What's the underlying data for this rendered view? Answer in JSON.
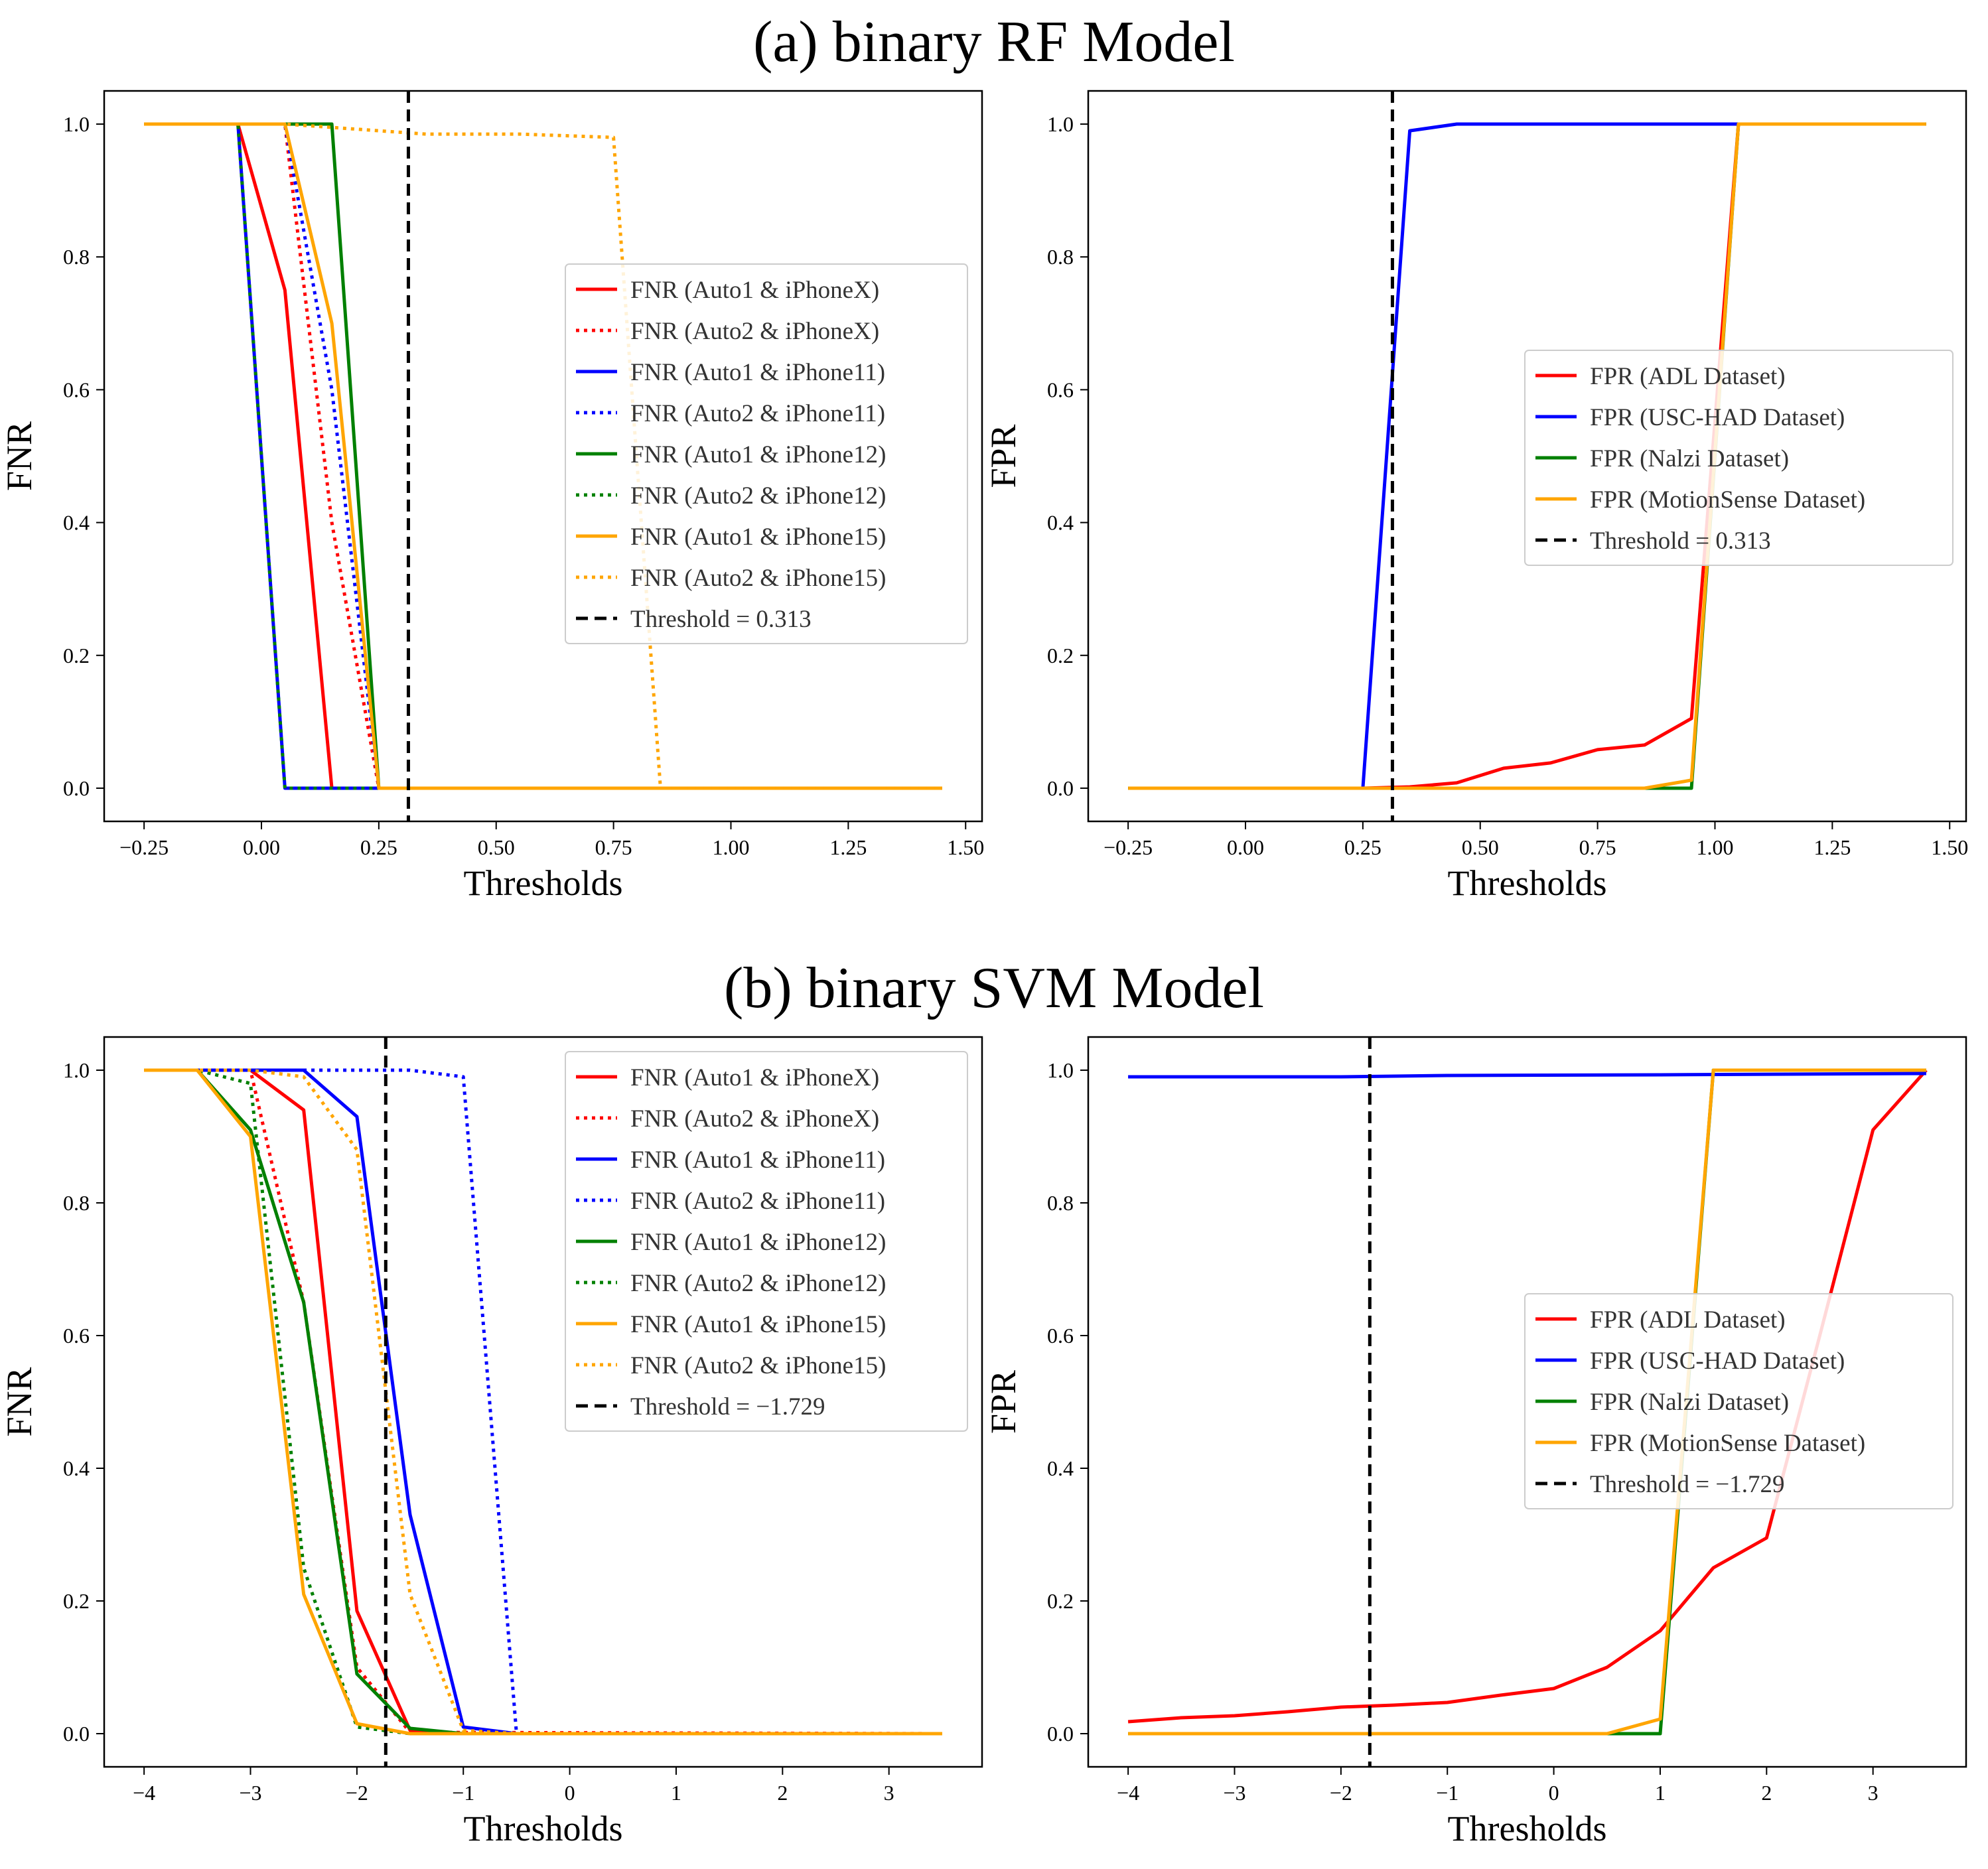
{
  "sections": [
    {
      "title": "(a) binary RF Model"
    },
    {
      "title": "(b) binary SVM Model"
    }
  ],
  "chart_data": [
    {
      "id": "rf-fnr",
      "type": "line",
      "xlabel": "Thresholds",
      "ylabel": "FNR",
      "xlim": [
        -0.335,
        1.535
      ],
      "ylim": [
        -0.05,
        1.05
      ],
      "xticks": [
        -0.25,
        0.0,
        0.25,
        0.5,
        0.75,
        1.0,
        1.25,
        1.5
      ],
      "xtick_labels": [
        "−0.25",
        "0.00",
        "0.25",
        "0.50",
        "0.75",
        "1.00",
        "1.25",
        "1.50"
      ],
      "yticks": [
        0.0,
        0.2,
        0.4,
        0.6,
        0.8,
        1.0
      ],
      "ytick_labels": [
        "0.0",
        "0.2",
        "0.4",
        "0.6",
        "0.8",
        "1.0"
      ],
      "legend_position": "center-right",
      "threshold": {
        "x": 0.313,
        "label": "Threshold = 0.313"
      },
      "series": [
        {
          "name": "FNR (Auto1 & iPhoneX)",
          "color": "#ff0000",
          "style": "solid",
          "points": [
            [
              -0.25,
              1
            ],
            [
              -0.05,
              1
            ],
            [
              0.05,
              0.75
            ],
            [
              0.15,
              0
            ],
            [
              1.45,
              0
            ]
          ]
        },
        {
          "name": "FNR (Auto2 & iPhoneX)",
          "color": "#ff0000",
          "style": "dotted",
          "points": [
            [
              -0.25,
              1
            ],
            [
              0.05,
              1
            ],
            [
              0.15,
              0.4
            ],
            [
              0.25,
              0
            ],
            [
              1.45,
              0
            ]
          ]
        },
        {
          "name": "FNR (Auto1 & iPhone11)",
          "color": "#0000ff",
          "style": "solid",
          "points": [
            [
              -0.25,
              1
            ],
            [
              -0.05,
              1
            ],
            [
              0.05,
              0
            ],
            [
              1.45,
              0
            ]
          ]
        },
        {
          "name": "FNR (Auto2 & iPhone11)",
          "color": "#0000ff",
          "style": "dotted",
          "points": [
            [
              -0.25,
              1
            ],
            [
              0.05,
              1
            ],
            [
              0.15,
              0.6
            ],
            [
              0.25,
              0
            ],
            [
              1.45,
              0
            ]
          ]
        },
        {
          "name": "FNR (Auto1 & iPhone12)",
          "color": "#008000",
          "style": "solid",
          "points": [
            [
              -0.25,
              1
            ],
            [
              0.05,
              1
            ],
            [
              0.15,
              1
            ],
            [
              0.25,
              0
            ],
            [
              1.45,
              0
            ]
          ]
        },
        {
          "name": "FNR (Auto2 & iPhone12)",
          "color": "#008000",
          "style": "dotted",
          "points": [
            [
              -0.25,
              1
            ],
            [
              -0.05,
              1
            ],
            [
              0.05,
              0
            ],
            [
              1.45,
              0
            ]
          ]
        },
        {
          "name": "FNR (Auto1 & iPhone15)",
          "color": "#ffa500",
          "style": "solid",
          "points": [
            [
              -0.25,
              1
            ],
            [
              0.05,
              1
            ],
            [
              0.15,
              0.7
            ],
            [
              0.25,
              0
            ],
            [
              1.45,
              0
            ]
          ]
        },
        {
          "name": "FNR (Auto2 & iPhone15)",
          "color": "#ffa500",
          "style": "dotted",
          "points": [
            [
              -0.25,
              1
            ],
            [
              0.05,
              1
            ],
            [
              0.35,
              0.985
            ],
            [
              0.55,
              0.985
            ],
            [
              0.75,
              0.98
            ],
            [
              0.85,
              0
            ],
            [
              1.45,
              0
            ]
          ]
        }
      ]
    },
    {
      "id": "rf-fpr",
      "type": "line",
      "xlabel": "Thresholds",
      "ylabel": "FPR",
      "xlim": [
        -0.335,
        1.535
      ],
      "ylim": [
        -0.05,
        1.05
      ],
      "xticks": [
        -0.25,
        0.0,
        0.25,
        0.5,
        0.75,
        1.0,
        1.25,
        1.5
      ],
      "xtick_labels": [
        "−0.25",
        "0.00",
        "0.25",
        "0.50",
        "0.75",
        "1.00",
        "1.25",
        "1.50"
      ],
      "yticks": [
        0.0,
        0.2,
        0.4,
        0.6,
        0.8,
        1.0
      ],
      "ytick_labels": [
        "0.0",
        "0.2",
        "0.4",
        "0.6",
        "0.8",
        "1.0"
      ],
      "legend_position": "center-right",
      "threshold": {
        "x": 0.313,
        "label": "Threshold = 0.313"
      },
      "series": [
        {
          "name": "FPR (ADL Dataset)",
          "color": "#ff0000",
          "style": "solid",
          "points": [
            [
              -0.25,
              0
            ],
            [
              0.25,
              0
            ],
            [
              0.35,
              0.002
            ],
            [
              0.45,
              0.008
            ],
            [
              0.55,
              0.03
            ],
            [
              0.65,
              0.038
            ],
            [
              0.75,
              0.058
            ],
            [
              0.85,
              0.065
            ],
            [
              0.95,
              0.105
            ],
            [
              1.05,
              1
            ],
            [
              1.45,
              1
            ]
          ]
        },
        {
          "name": "FPR (USC-HAD Dataset)",
          "color": "#0000ff",
          "style": "solid",
          "points": [
            [
              -0.25,
              0
            ],
            [
              0.25,
              0
            ],
            [
              0.35,
              0.99
            ],
            [
              0.45,
              1
            ],
            [
              1.05,
              1
            ],
            [
              1.45,
              1
            ]
          ]
        },
        {
          "name": "FPR (Nalzi Dataset)",
          "color": "#008000",
          "style": "solid",
          "points": [
            [
              -0.25,
              0
            ],
            [
              0.95,
              0
            ],
            [
              1.05,
              1
            ],
            [
              1.45,
              1
            ]
          ]
        },
        {
          "name": "FPR (MotionSense Dataset)",
          "color": "#ffa500",
          "style": "solid",
          "points": [
            [
              -0.25,
              0
            ],
            [
              0.85,
              0
            ],
            [
              0.95,
              0.012
            ],
            [
              1.05,
              1
            ],
            [
              1.45,
              1
            ]
          ]
        }
      ]
    },
    {
      "id": "svm-fnr",
      "type": "line",
      "xlabel": "Thresholds",
      "ylabel": "FNR",
      "xlim": [
        -4.375,
        3.875
      ],
      "ylim": [
        -0.05,
        1.05
      ],
      "xticks": [
        -4,
        -3,
        -2,
        -1,
        0,
        1,
        2,
        3
      ],
      "xtick_labels": [
        "−4",
        "−3",
        "−2",
        "−1",
        "0",
        "1",
        "2",
        "3"
      ],
      "yticks": [
        0.0,
        0.2,
        0.4,
        0.6,
        0.8,
        1.0
      ],
      "ytick_labels": [
        "0.0",
        "0.2",
        "0.4",
        "0.6",
        "0.8",
        "1.0"
      ],
      "legend_position": "upper-right",
      "threshold": {
        "x": -1.729,
        "label": "Threshold = −1.729"
      },
      "series": [
        {
          "name": "FNR (Auto1 & iPhoneX)",
          "color": "#ff0000",
          "style": "solid",
          "points": [
            [
              -4,
              1
            ],
            [
              -3,
              1
            ],
            [
              -2.5,
              0.94
            ],
            [
              -2,
              0.185
            ],
            [
              -1.5,
              0.005
            ],
            [
              -1,
              0
            ],
            [
              3.5,
              0
            ]
          ]
        },
        {
          "name": "FNR (Auto2 & iPhoneX)",
          "color": "#ff0000",
          "style": "dotted",
          "points": [
            [
              -4,
              1
            ],
            [
              -3,
              1
            ],
            [
              -2.5,
              0.65
            ],
            [
              -2,
              0.1
            ],
            [
              -1.5,
              0.002
            ],
            [
              3.5,
              0
            ]
          ]
        },
        {
          "name": "FNR (Auto1 & iPhone11)",
          "color": "#0000ff",
          "style": "solid",
          "points": [
            [
              -4,
              1
            ],
            [
              -3,
              1
            ],
            [
              -2.5,
              1
            ],
            [
              -2,
              0.93
            ],
            [
              -1.5,
              0.33
            ],
            [
              -1,
              0.01
            ],
            [
              -0.5,
              0
            ],
            [
              3.5,
              0
            ]
          ]
        },
        {
          "name": "FNR (Auto2 & iPhone11)",
          "color": "#0000ff",
          "style": "dotted",
          "points": [
            [
              -4,
              1
            ],
            [
              -1.5,
              1
            ],
            [
              -1,
              0.99
            ],
            [
              -0.5,
              0
            ],
            [
              3.5,
              0
            ]
          ]
        },
        {
          "name": "FNR (Auto1 & iPhone12)",
          "color": "#008000",
          "style": "solid",
          "points": [
            [
              -4,
              1
            ],
            [
              -3.5,
              1
            ],
            [
              -3,
              0.91
            ],
            [
              -2.5,
              0.65
            ],
            [
              -2,
              0.09
            ],
            [
              -1.5,
              0.008
            ],
            [
              -1,
              0
            ],
            [
              3.5,
              0
            ]
          ]
        },
        {
          "name": "FNR (Auto2 & iPhone12)",
          "color": "#008000",
          "style": "dotted",
          "points": [
            [
              -4,
              1
            ],
            [
              -3.5,
              1
            ],
            [
              -3,
              0.98
            ],
            [
              -2.5,
              0.25
            ],
            [
              -2,
              0.01
            ],
            [
              -1.5,
              0
            ],
            [
              3.5,
              0
            ]
          ]
        },
        {
          "name": "FNR (Auto1 & iPhone15)",
          "color": "#ffa500",
          "style": "solid",
          "points": [
            [
              -4,
              1
            ],
            [
              -3.5,
              1
            ],
            [
              -3,
              0.9
            ],
            [
              -2.5,
              0.21
            ],
            [
              -2,
              0.015
            ],
            [
              -1.5,
              0
            ],
            [
              3.5,
              0
            ]
          ]
        },
        {
          "name": "FNR (Auto2 & iPhone15)",
          "color": "#ffa500",
          "style": "dotted",
          "points": [
            [
              -4,
              1
            ],
            [
              -3,
              1
            ],
            [
              -2.5,
              0.99
            ],
            [
              -2,
              0.88
            ],
            [
              -1.5,
              0.21
            ],
            [
              -1,
              0.005
            ],
            [
              -0.5,
              0
            ],
            [
              3.5,
              0
            ]
          ]
        }
      ]
    },
    {
      "id": "svm-fpr",
      "type": "line",
      "xlabel": "Thresholds",
      "ylabel": "FPR",
      "xlim": [
        -4.375,
        3.875
      ],
      "ylim": [
        -0.05,
        1.05
      ],
      "xticks": [
        -4,
        -3,
        -2,
        -1,
        0,
        1,
        2,
        3
      ],
      "xtick_labels": [
        "−4",
        "−3",
        "−2",
        "−1",
        "0",
        "1",
        "2",
        "3"
      ],
      "yticks": [
        0.0,
        0.2,
        0.4,
        0.6,
        0.8,
        1.0
      ],
      "ytick_labels": [
        "0.0",
        "0.2",
        "0.4",
        "0.6",
        "0.8",
        "1.0"
      ],
      "legend_position": "center-right",
      "threshold": {
        "x": -1.729,
        "label": "Threshold = −1.729"
      },
      "series": [
        {
          "name": "FPR (ADL Dataset)",
          "color": "#ff0000",
          "style": "solid",
          "points": [
            [
              -4,
              0.018
            ],
            [
              -3.5,
              0.024
            ],
            [
              -3,
              0.027
            ],
            [
              -2.5,
              0.033
            ],
            [
              -2,
              0.04
            ],
            [
              -1.5,
              0.043
            ],
            [
              -1,
              0.047
            ],
            [
              -0.5,
              0.058
            ],
            [
              0,
              0.068
            ],
            [
              0.5,
              0.1
            ],
            [
              1,
              0.155
            ],
            [
              1.5,
              0.25
            ],
            [
              2,
              0.295
            ],
            [
              2.5,
              0.6
            ],
            [
              3,
              0.91
            ],
            [
              3.5,
              1
            ]
          ]
        },
        {
          "name": "FPR (USC-HAD Dataset)",
          "color": "#0000ff",
          "style": "solid",
          "points": [
            [
              -4,
              0.99
            ],
            [
              -2,
              0.99
            ],
            [
              -1,
              0.992
            ],
            [
              1,
              0.993
            ],
            [
              3.5,
              0.995
            ]
          ]
        },
        {
          "name": "FPR (Nalzi Dataset)",
          "color": "#008000",
          "style": "solid",
          "points": [
            [
              -4,
              0
            ],
            [
              1,
              0
            ],
            [
              1.5,
              1
            ],
            [
              3.5,
              1
            ]
          ]
        },
        {
          "name": "FPR (MotionSense Dataset)",
          "color": "#ffa500",
          "style": "solid",
          "points": [
            [
              -4,
              0
            ],
            [
              0.5,
              0
            ],
            [
              1,
              0.022
            ],
            [
              1.5,
              1
            ],
            [
              3.5,
              1
            ]
          ]
        }
      ]
    }
  ]
}
